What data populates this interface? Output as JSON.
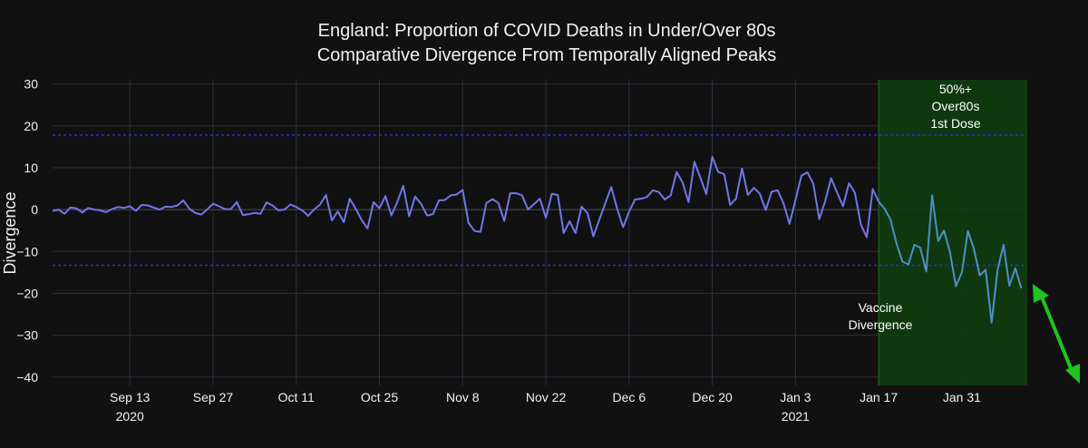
{
  "chart_data": {
    "type": "line",
    "title": [
      "England: Proportion of COVID Deaths in Under/Over 80s",
      "Comparative Divergence From Temporally Aligned Peaks"
    ],
    "xlabel": "",
    "ylabel": "Divergence",
    "ylim": [
      -42,
      31
    ],
    "xlim": [
      "2020-08-31",
      "2021-02-11"
    ],
    "y_ticks": [
      30,
      20,
      10,
      0,
      -10,
      -20,
      -30,
      -40
    ],
    "x_ticks": [
      {
        "date": "2020-09-13",
        "label": "Sep 13",
        "year": "2020"
      },
      {
        "date": "2020-09-27",
        "label": "Sep 27",
        "year": ""
      },
      {
        "date": "2020-10-11",
        "label": "Oct 11",
        "year": ""
      },
      {
        "date": "2020-10-25",
        "label": "Oct 25",
        "year": ""
      },
      {
        "date": "2020-11-08",
        "label": "Nov 8",
        "year": ""
      },
      {
        "date": "2020-11-22",
        "label": "Nov 22",
        "year": ""
      },
      {
        "date": "2020-12-06",
        "label": "Dec 6",
        "year": ""
      },
      {
        "date": "2020-12-20",
        "label": "Dec 20",
        "year": ""
      },
      {
        "date": "2021-01-03",
        "label": "Jan 3",
        "year": "2021"
      },
      {
        "date": "2021-01-17",
        "label": "Jan 17",
        "year": ""
      },
      {
        "date": "2021-01-31",
        "label": "Jan 31",
        "year": ""
      }
    ],
    "reference_lines": [
      17.8,
      -13.3
    ],
    "shaded_region": {
      "from": "2021-01-17",
      "to": "2021-02-11",
      "label": [
        "50%+",
        "Over80s",
        "1st Dose"
      ],
      "color": "#0f3d0f"
    },
    "annotation": [
      "Vaccine",
      "Divergence"
    ],
    "series": [
      {
        "line_color": "#6f78e8",
        "vaccine_color": "#4f8fc8",
        "x_start": "2020-08-31",
        "x_step_days": 1,
        "values": [
          -0.3,
          0,
          -1,
          0.5,
          0.3,
          -0.7,
          0.4,
          0,
          -0.2,
          -0.6,
          0.1,
          0.6,
          0.4,
          0.8,
          -0.3,
          1.1,
          1,
          0.5,
          0,
          0.7,
          0.6,
          1,
          2.2,
          0.2,
          -0.8,
          -1.2,
          0,
          1.4,
          0.8,
          0.1,
          0.1,
          1.8,
          -1.3,
          -1.1,
          -0.8,
          -1,
          1.7,
          1,
          -0.2,
          0,
          1.2,
          0.6,
          -0.2,
          -1.5,
          0,
          1.2,
          3.5,
          -2.6,
          -0.4,
          -3,
          2.6,
          0.2,
          -2.5,
          -4.5,
          1.8,
          0.3,
          3.2,
          -1.4,
          1.8,
          5.7,
          -1.6,
          3.1,
          1.4,
          -1.4,
          -1.1,
          2.2,
          2.3,
          3.4,
          3.6,
          4.7,
          -3.2,
          -5.1,
          -5.3,
          1.6,
          2.5,
          1.6,
          -2.7,
          3.9,
          3.9,
          3.4,
          0,
          1.3,
          2.6,
          -2,
          3.8,
          3.5,
          -5.6,
          -2.8,
          -5.6,
          0.7,
          -0.8,
          -6.4,
          -2.4,
          1.5,
          5.4,
          0.2,
          -4.2,
          -0.5,
          2.4,
          2.6,
          3,
          4.6,
          4.2,
          2.4,
          3.4,
          9,
          6.5,
          1.8,
          11.4,
          7.6,
          3.7,
          12.6,
          9,
          8.5,
          1.1,
          2.6,
          9.8,
          3.5,
          5.2,
          3.8,
          -0.1,
          4.3,
          4.6,
          1.4,
          -3.4,
          2.3,
          8.1,
          8.9,
          6.2,
          -2.3,
          2,
          7.5,
          4.1,
          0.8,
          6.3,
          4,
          -3.6,
          -6.6,
          4.9,
          1.9,
          0.2,
          -2.4,
          -8.1,
          -12.4,
          -13.1,
          -8.4,
          -9.1,
          -14.8,
          3.4,
          -7.5,
          -5,
          -10.2,
          -18.3,
          -15,
          -5.1,
          -9.3,
          -15.7,
          -14.4,
          -27,
          -14.5,
          -8.4,
          -18.2,
          -14,
          -18.8
        ]
      }
    ]
  }
}
